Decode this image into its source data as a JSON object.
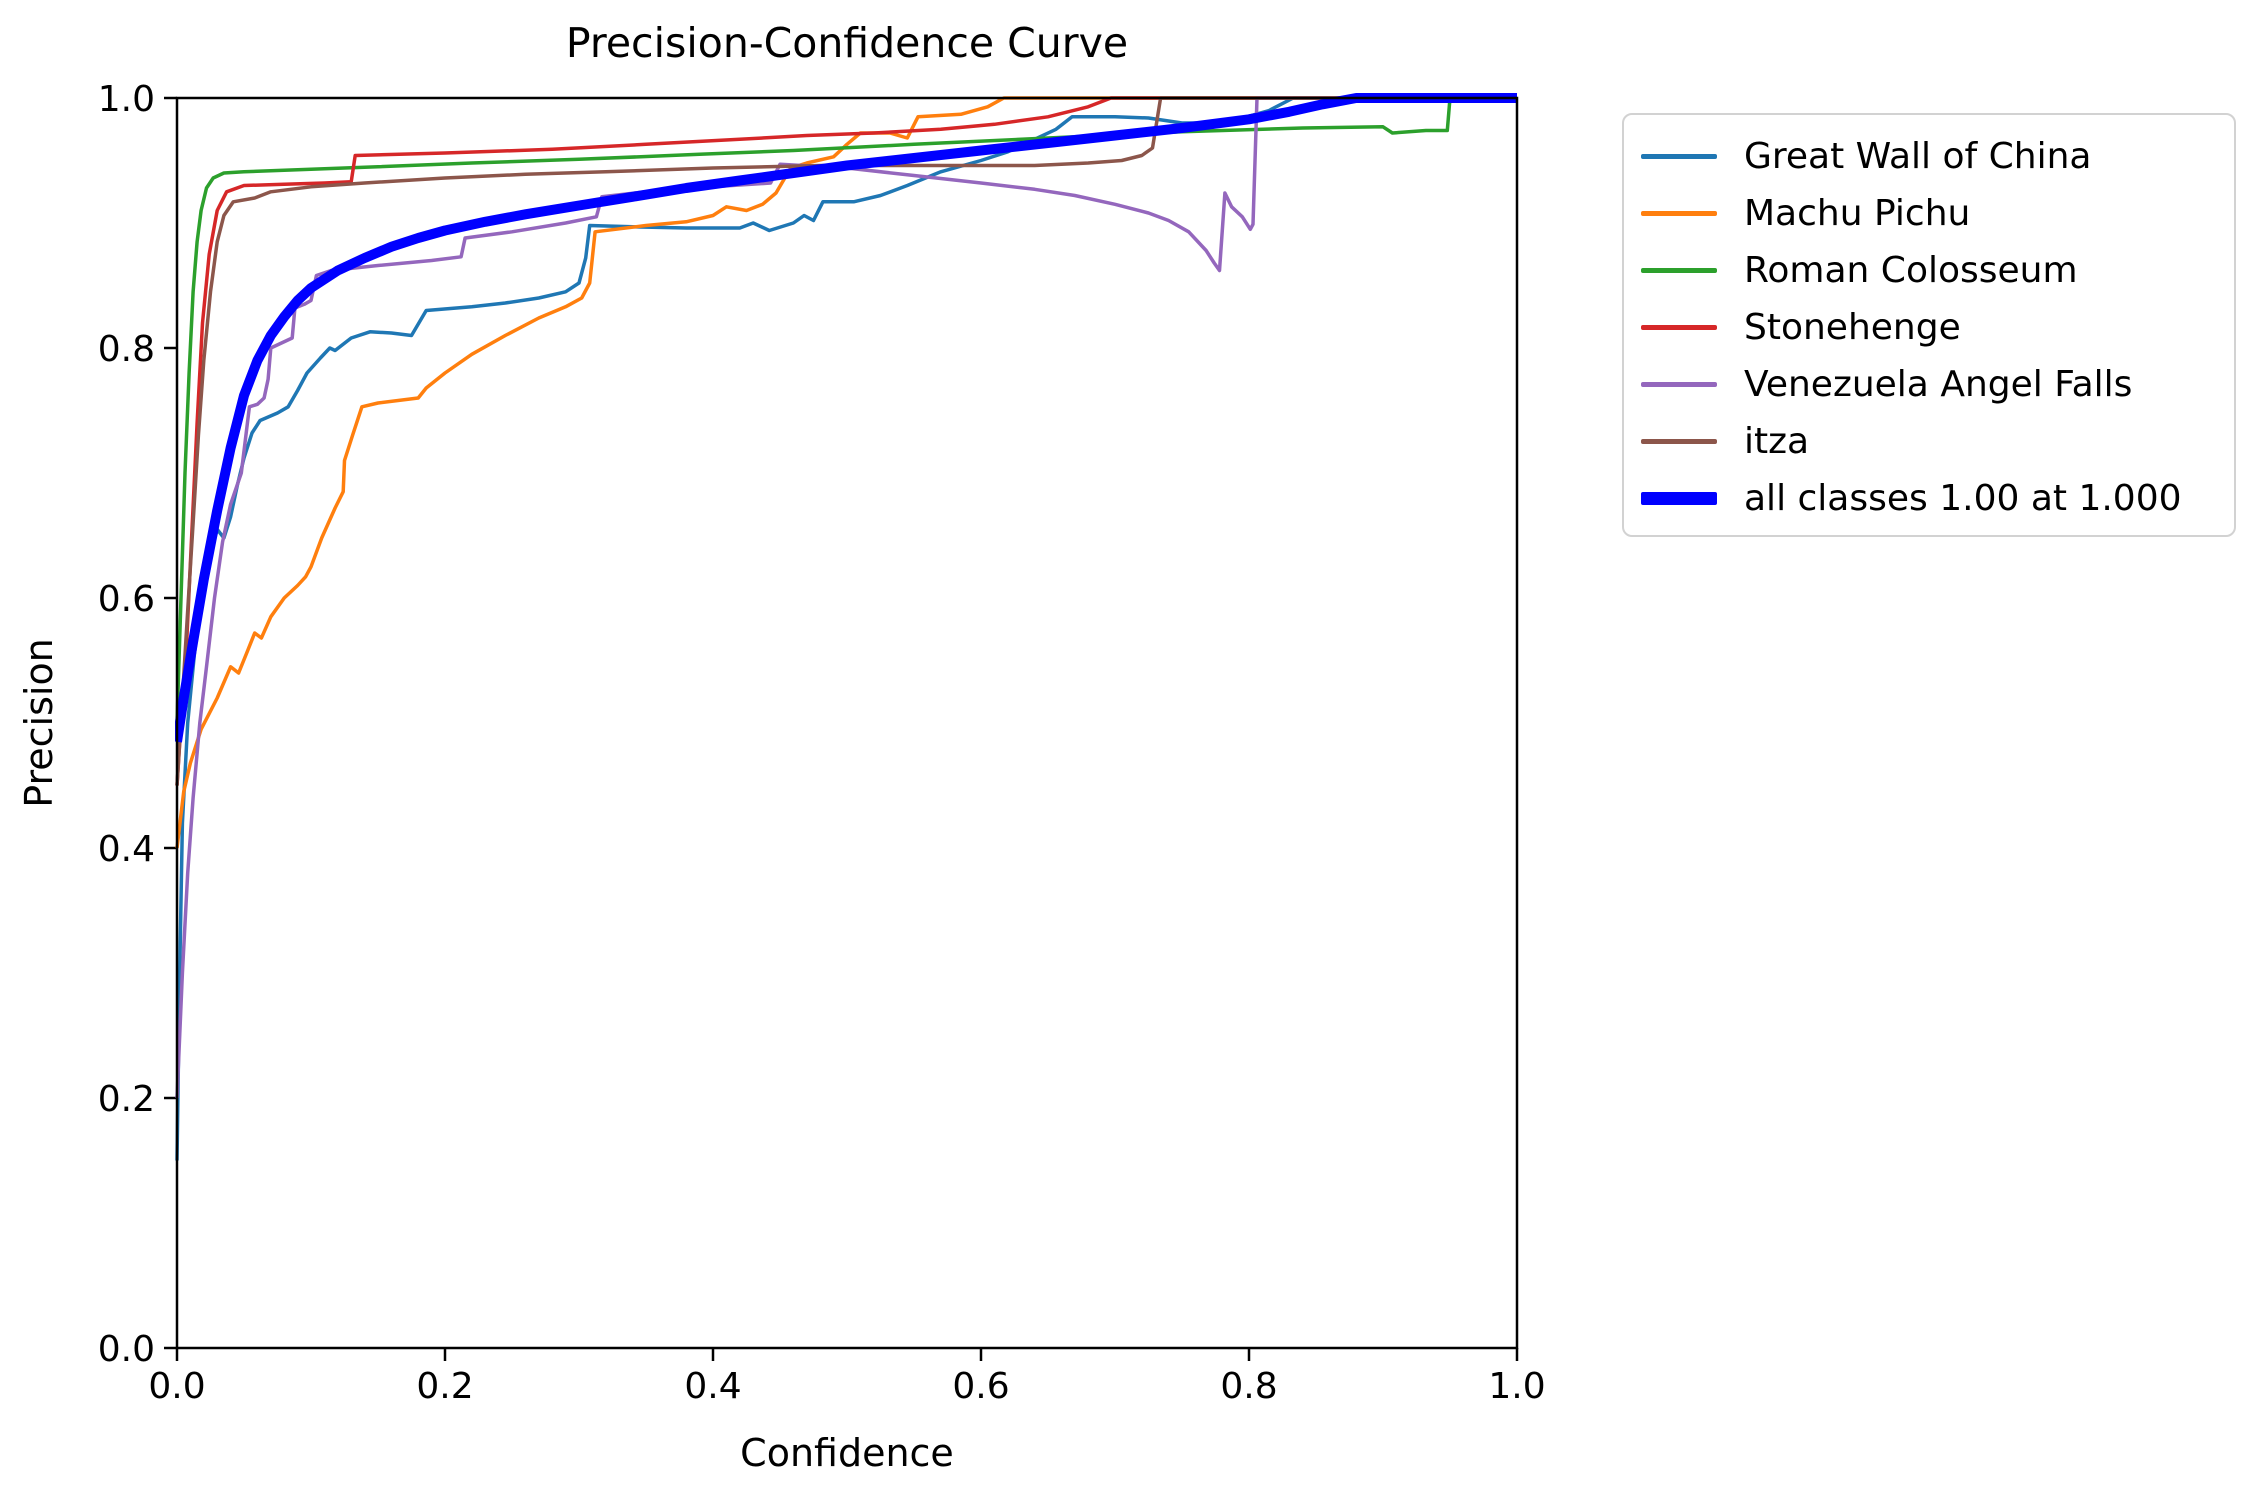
{
  "figure": {
    "background": "#ffffff",
    "text_color": "#000000",
    "spine_color": "#000000"
  },
  "chart_data": {
    "type": "line",
    "title": "Precision-Confidence Curve",
    "xlabel": "Confidence",
    "ylabel": "Precision",
    "xlim": [
      0.0,
      1.0
    ],
    "ylim": [
      0.0,
      1.0
    ],
    "xtick_labels": [
      "0.0",
      "0.2",
      "0.4",
      "0.6",
      "0.8",
      "1.0"
    ],
    "ytick_labels": [
      "0.0",
      "0.2",
      "0.4",
      "0.6",
      "0.8",
      "1.0"
    ],
    "xticks": [
      0.0,
      0.2,
      0.4,
      0.6,
      0.8,
      1.0
    ],
    "yticks": [
      0.0,
      0.2,
      0.4,
      0.6,
      0.8,
      1.0
    ],
    "grid": false,
    "legend_position": "outside-upper-right",
    "series": [
      {
        "name": "Great Wall of China",
        "color": "#1f77b4",
        "width": 3.5,
        "points": [
          [
            0,
            0.15
          ],
          [
            0.002,
            0.3
          ],
          [
            0.004,
            0.42
          ],
          [
            0.008,
            0.5
          ],
          [
            0.013,
            0.555
          ],
          [
            0.018,
            0.6
          ],
          [
            0.025,
            0.635
          ],
          [
            0.03,
            0.655
          ],
          [
            0.035,
            0.648
          ],
          [
            0.04,
            0.665
          ],
          [
            0.045,
            0.69
          ],
          [
            0.05,
            0.712
          ],
          [
            0.056,
            0.732
          ],
          [
            0.062,
            0.742
          ],
          [
            0.075,
            0.748
          ],
          [
            0.083,
            0.753
          ],
          [
            0.09,
            0.766
          ],
          [
            0.097,
            0.78
          ],
          [
            0.107,
            0.792
          ],
          [
            0.114,
            0.8
          ],
          [
            0.118,
            0.798
          ],
          [
            0.13,
            0.808
          ],
          [
            0.144,
            0.813
          ],
          [
            0.16,
            0.812
          ],
          [
            0.175,
            0.81
          ],
          [
            0.186,
            0.83
          ],
          [
            0.22,
            0.833
          ],
          [
            0.245,
            0.836
          ],
          [
            0.27,
            0.84
          ],
          [
            0.29,
            0.845
          ],
          [
            0.3,
            0.852
          ],
          [
            0.305,
            0.872
          ],
          [
            0.308,
            0.898
          ],
          [
            0.34,
            0.897
          ],
          [
            0.38,
            0.896
          ],
          [
            0.42,
            0.896
          ],
          [
            0.43,
            0.9
          ],
          [
            0.442,
            0.894
          ],
          [
            0.46,
            0.9
          ],
          [
            0.468,
            0.906
          ],
          [
            0.475,
            0.902
          ],
          [
            0.482,
            0.917
          ],
          [
            0.505,
            0.917
          ],
          [
            0.525,
            0.922
          ],
          [
            0.545,
            0.93
          ],
          [
            0.57,
            0.941
          ],
          [
            0.6,
            0.95
          ],
          [
            0.62,
            0.957
          ],
          [
            0.64,
            0.967
          ],
          [
            0.656,
            0.975
          ],
          [
            0.668,
            0.985
          ],
          [
            0.7,
            0.985
          ],
          [
            0.725,
            0.984
          ],
          [
            0.75,
            0.98
          ],
          [
            0.775,
            0.98
          ],
          [
            0.795,
            0.984
          ],
          [
            0.815,
            0.99
          ],
          [
            0.833,
            1.0
          ],
          [
            1.0,
            1.0
          ]
        ]
      },
      {
        "name": "Machu Pichu",
        "color": "#ff7f0e",
        "width": 3.5,
        "points": [
          [
            0,
            0.4
          ],
          [
            0.005,
            0.445
          ],
          [
            0.01,
            0.468
          ],
          [
            0.018,
            0.495
          ],
          [
            0.03,
            0.52
          ],
          [
            0.04,
            0.545
          ],
          [
            0.046,
            0.54
          ],
          [
            0.052,
            0.556
          ],
          [
            0.058,
            0.572
          ],
          [
            0.063,
            0.568
          ],
          [
            0.07,
            0.585
          ],
          [
            0.08,
            0.6
          ],
          [
            0.09,
            0.61
          ],
          [
            0.096,
            0.617
          ],
          [
            0.1,
            0.625
          ],
          [
            0.108,
            0.648
          ],
          [
            0.118,
            0.672
          ],
          [
            0.124,
            0.685
          ],
          [
            0.125,
            0.71
          ],
          [
            0.131,
            0.73
          ],
          [
            0.138,
            0.753
          ],
          [
            0.15,
            0.756
          ],
          [
            0.18,
            0.76
          ],
          [
            0.186,
            0.768
          ],
          [
            0.2,
            0.78
          ],
          [
            0.22,
            0.795
          ],
          [
            0.245,
            0.81
          ],
          [
            0.27,
            0.824
          ],
          [
            0.29,
            0.833
          ],
          [
            0.302,
            0.84
          ],
          [
            0.308,
            0.852
          ],
          [
            0.312,
            0.893
          ],
          [
            0.35,
            0.898
          ],
          [
            0.38,
            0.901
          ],
          [
            0.4,
            0.906
          ],
          [
            0.41,
            0.913
          ],
          [
            0.425,
            0.91
          ],
          [
            0.437,
            0.915
          ],
          [
            0.447,
            0.924
          ],
          [
            0.458,
            0.944
          ],
          [
            0.47,
            0.948
          ],
          [
            0.49,
            0.953
          ],
          [
            0.5,
            0.963
          ],
          [
            0.51,
            0.972
          ],
          [
            0.532,
            0.972
          ],
          [
            0.545,
            0.968
          ],
          [
            0.553,
            0.985
          ],
          [
            0.585,
            0.987
          ],
          [
            0.605,
            0.993
          ],
          [
            0.617,
            1.0
          ],
          [
            1.0,
            1.0
          ]
        ]
      },
      {
        "name": "Roman Colosseum",
        "color": "#2ca02c",
        "width": 3.5,
        "points": [
          [
            0,
            0.5
          ],
          [
            0.003,
            0.6
          ],
          [
            0.006,
            0.7
          ],
          [
            0.009,
            0.78
          ],
          [
            0.012,
            0.845
          ],
          [
            0.015,
            0.885
          ],
          [
            0.018,
            0.91
          ],
          [
            0.022,
            0.928
          ],
          [
            0.027,
            0.936
          ],
          [
            0.035,
            0.94
          ],
          [
            0.05,
            0.941
          ],
          [
            0.1,
            0.943
          ],
          [
            0.15,
            0.945
          ],
          [
            0.22,
            0.948
          ],
          [
            0.3,
            0.951
          ],
          [
            0.39,
            0.955
          ],
          [
            0.46,
            0.958
          ],
          [
            0.55,
            0.963
          ],
          [
            0.65,
            0.968
          ],
          [
            0.75,
            0.973
          ],
          [
            0.84,
            0.976
          ],
          [
            0.9,
            0.977
          ],
          [
            0.907,
            0.972
          ],
          [
            0.932,
            0.974
          ],
          [
            0.948,
            0.974
          ],
          [
            0.95,
            1.0
          ],
          [
            1.0,
            1.0
          ]
        ]
      },
      {
        "name": "Stonehenge",
        "color": "#d62728",
        "width": 3.5,
        "points": [
          [
            0,
            0.45
          ],
          [
            0.003,
            0.5
          ],
          [
            0.007,
            0.56
          ],
          [
            0.011,
            0.65
          ],
          [
            0.015,
            0.74
          ],
          [
            0.019,
            0.82
          ],
          [
            0.024,
            0.875
          ],
          [
            0.03,
            0.91
          ],
          [
            0.037,
            0.925
          ],
          [
            0.05,
            0.93
          ],
          [
            0.08,
            0.931
          ],
          [
            0.11,
            0.932
          ],
          [
            0.13,
            0.933
          ],
          [
            0.133,
            0.954
          ],
          [
            0.2,
            0.956
          ],
          [
            0.28,
            0.959
          ],
          [
            0.35,
            0.963
          ],
          [
            0.42,
            0.967
          ],
          [
            0.47,
            0.97
          ],
          [
            0.52,
            0.972
          ],
          [
            0.57,
            0.975
          ],
          [
            0.61,
            0.979
          ],
          [
            0.65,
            0.985
          ],
          [
            0.68,
            0.993
          ],
          [
            0.697,
            1.0
          ],
          [
            1.0,
            1.0
          ]
        ]
      },
      {
        "name": "Venezuela Angel Falls",
        "color": "#9467bd",
        "width": 3.5,
        "points": [
          [
            0,
            0.2
          ],
          [
            0.004,
            0.3
          ],
          [
            0.008,
            0.38
          ],
          [
            0.012,
            0.44
          ],
          [
            0.017,
            0.5
          ],
          [
            0.022,
            0.545
          ],
          [
            0.028,
            0.6
          ],
          [
            0.034,
            0.645
          ],
          [
            0.04,
            0.675
          ],
          [
            0.048,
            0.7
          ],
          [
            0.054,
            0.753
          ],
          [
            0.06,
            0.755
          ],
          [
            0.065,
            0.76
          ],
          [
            0.068,
            0.775
          ],
          [
            0.07,
            0.8
          ],
          [
            0.078,
            0.804
          ],
          [
            0.086,
            0.808
          ],
          [
            0.088,
            0.832
          ],
          [
            0.095,
            0.835
          ],
          [
            0.1,
            0.838
          ],
          [
            0.104,
            0.858
          ],
          [
            0.115,
            0.862
          ],
          [
            0.15,
            0.866
          ],
          [
            0.19,
            0.87
          ],
          [
            0.212,
            0.873
          ],
          [
            0.215,
            0.888
          ],
          [
            0.25,
            0.893
          ],
          [
            0.29,
            0.9
          ],
          [
            0.313,
            0.905
          ],
          [
            0.317,
            0.921
          ],
          [
            0.35,
            0.925
          ],
          [
            0.4,
            0.929
          ],
          [
            0.443,
            0.932
          ],
          [
            0.45,
            0.947
          ],
          [
            0.5,
            0.944
          ],
          [
            0.55,
            0.938
          ],
          [
            0.6,
            0.932
          ],
          [
            0.64,
            0.927
          ],
          [
            0.67,
            0.922
          ],
          [
            0.7,
            0.915
          ],
          [
            0.725,
            0.908
          ],
          [
            0.74,
            0.902
          ],
          [
            0.755,
            0.893
          ],
          [
            0.768,
            0.878
          ],
          [
            0.774,
            0.868
          ],
          [
            0.778,
            0.862
          ],
          [
            0.782,
            0.924
          ],
          [
            0.787,
            0.913
          ],
          [
            0.795,
            0.905
          ],
          [
            0.801,
            0.895
          ],
          [
            0.803,
            0.899
          ],
          [
            0.806,
            1.0
          ],
          [
            1.0,
            1.0
          ]
        ]
      },
      {
        "name": "itza",
        "color": "#8c564b",
        "width": 3.5,
        "points": [
          [
            0,
            0.45
          ],
          [
            0.004,
            0.52
          ],
          [
            0.008,
            0.59
          ],
          [
            0.012,
            0.66
          ],
          [
            0.016,
            0.73
          ],
          [
            0.02,
            0.79
          ],
          [
            0.025,
            0.845
          ],
          [
            0.03,
            0.885
          ],
          [
            0.035,
            0.906
          ],
          [
            0.042,
            0.917
          ],
          [
            0.058,
            0.92
          ],
          [
            0.07,
            0.925
          ],
          [
            0.1,
            0.929
          ],
          [
            0.14,
            0.932
          ],
          [
            0.2,
            0.936
          ],
          [
            0.26,
            0.939
          ],
          [
            0.32,
            0.941
          ],
          [
            0.4,
            0.944
          ],
          [
            0.48,
            0.946
          ],
          [
            0.56,
            0.946
          ],
          [
            0.64,
            0.946
          ],
          [
            0.68,
            0.948
          ],
          [
            0.705,
            0.95
          ],
          [
            0.72,
            0.954
          ],
          [
            0.728,
            0.96
          ],
          [
            0.734,
            1.0
          ],
          [
            1.0,
            1.0
          ]
        ]
      },
      {
        "name": "all classes 1.00 at 1.000",
        "color": "#0000ff",
        "width": 10,
        "points": [
          [
            0,
            0.485
          ],
          [
            0.005,
            0.52
          ],
          [
            0.012,
            0.565
          ],
          [
            0.02,
            0.615
          ],
          [
            0.03,
            0.67
          ],
          [
            0.04,
            0.72
          ],
          [
            0.05,
            0.762
          ],
          [
            0.06,
            0.79
          ],
          [
            0.07,
            0.81
          ],
          [
            0.08,
            0.825
          ],
          [
            0.09,
            0.838
          ],
          [
            0.1,
            0.848
          ],
          [
            0.12,
            0.862
          ],
          [
            0.14,
            0.872
          ],
          [
            0.16,
            0.881
          ],
          [
            0.18,
            0.888
          ],
          [
            0.2,
            0.894
          ],
          [
            0.23,
            0.901
          ],
          [
            0.26,
            0.907
          ],
          [
            0.3,
            0.914
          ],
          [
            0.34,
            0.921
          ],
          [
            0.38,
            0.928
          ],
          [
            0.42,
            0.934
          ],
          [
            0.46,
            0.94
          ],
          [
            0.5,
            0.946
          ],
          [
            0.55,
            0.952
          ],
          [
            0.6,
            0.958
          ],
          [
            0.65,
            0.964
          ],
          [
            0.7,
            0.97
          ],
          [
            0.75,
            0.976
          ],
          [
            0.8,
            0.983
          ],
          [
            0.83,
            0.989
          ],
          [
            0.855,
            0.995
          ],
          [
            0.88,
            1.0
          ],
          [
            1.0,
            1.0
          ]
        ]
      }
    ]
  }
}
